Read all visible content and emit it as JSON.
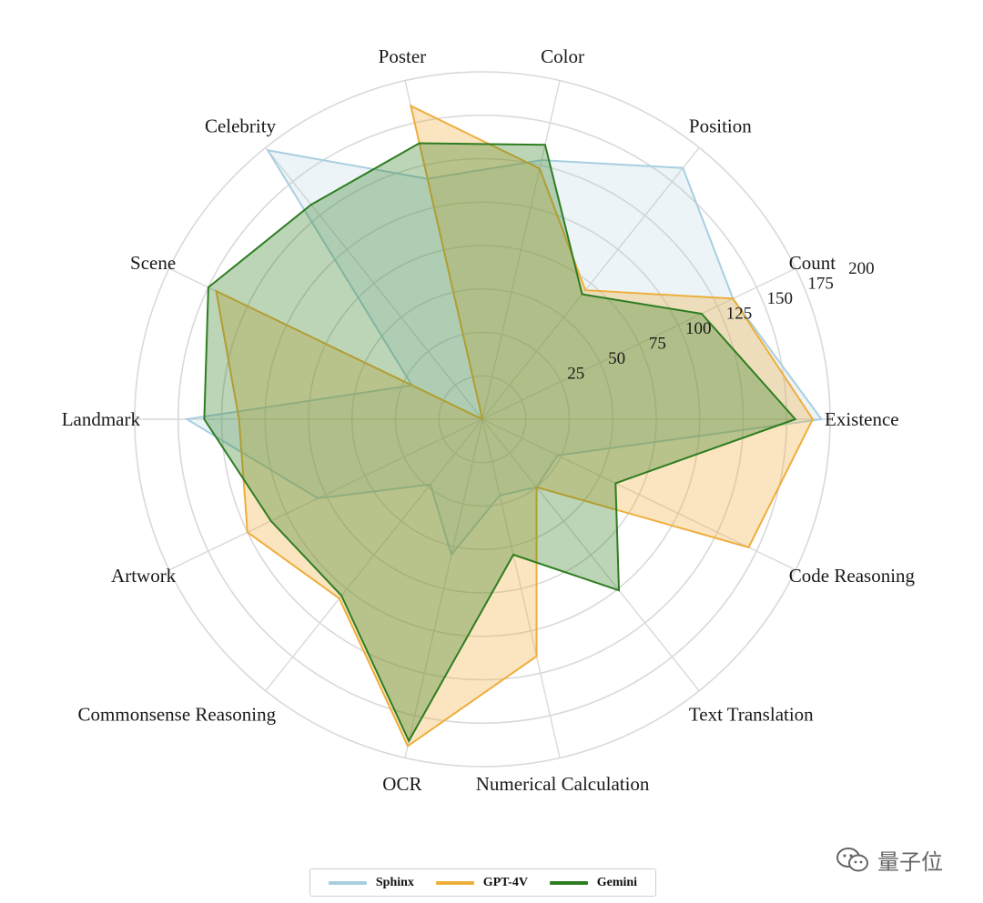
{
  "chart_data": {
    "type": "radar",
    "title": "",
    "axes": [
      "Existence",
      "Count",
      "Position",
      "Color",
      "Poster",
      "Celebrity",
      "Scene",
      "Landmark",
      "Artwork",
      "Commonsense Reasoning",
      "OCR",
      "Numerical Calculation",
      "Text Translation",
      "Code Reasoning"
    ],
    "radial_ticks": [
      25,
      50,
      75,
      100,
      125,
      150,
      175,
      200
    ],
    "rlim": [
      0,
      200
    ],
    "grid": true,
    "legend_position": "bottom",
    "series": [
      {
        "name": "Sphinx",
        "color": "#a8cfe0",
        "values": [
          195,
          160,
          185,
          153,
          142,
          198,
          45,
          170,
          105,
          48,
          80,
          45,
          50,
          48
        ]
      },
      {
        "name": "GPT-4V",
        "color": "#eeae3c",
        "values": [
          190,
          160,
          95,
          148,
          185,
          0,
          170,
          140,
          150,
          132,
          193,
          140,
          50,
          170
        ]
      },
      {
        "name": "Gemini",
        "color": "#2e7d20",
        "values": [
          180,
          140,
          92,
          162,
          163,
          158,
          175,
          160,
          135,
          130,
          190,
          80,
          126,
          85
        ]
      }
    ]
  },
  "watermark": {
    "text": "量子位"
  }
}
